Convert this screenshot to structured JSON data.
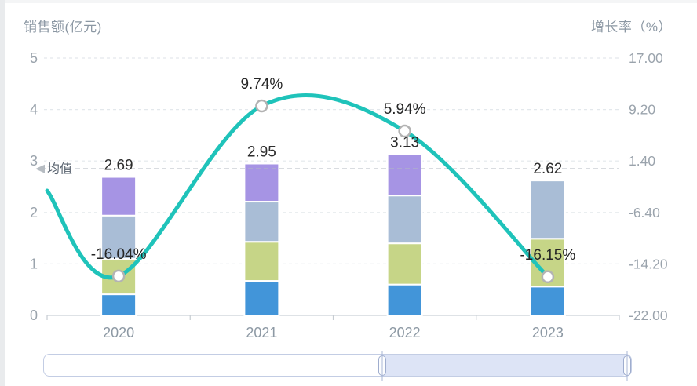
{
  "chart_data": {
    "type": "bar+line",
    "title": "",
    "categories": [
      "2020",
      "2021",
      "2022",
      "2023"
    ],
    "left_axis": {
      "name": "销售额(亿元)",
      "min": 0,
      "max": 5,
      "tick_labels": [
        "5",
        "4",
        "3",
        "2",
        "1",
        "0"
      ],
      "tick_values": [
        5,
        4,
        3,
        2,
        1,
        0
      ]
    },
    "right_axis": {
      "name": "增长率（%）",
      "min": -22,
      "max": 17,
      "tick_labels": [
        "17.00",
        "9.20",
        "1.40",
        "-6.40",
        "-14.20",
        "-22.00"
      ],
      "tick_values": [
        17,
        9.2,
        1.4,
        -6.4,
        -14.2,
        -22
      ]
    },
    "grid": "dashed horizontal gridlines",
    "legend_position": "none",
    "bar_series": [
      {
        "name": "stack-segment-blue",
        "color": "#4295d9",
        "values": [
          0.41,
          0.67,
          0.6,
          0.56
        ]
      },
      {
        "name": "stack-segment-green",
        "color": "#c6d587",
        "values": [
          0.69,
          0.76,
          0.8,
          0.93
        ]
      },
      {
        "name": "stack-segment-slate",
        "color": "#a9bdd6",
        "values": [
          0.84,
          0.78,
          0.93,
          1.13
        ]
      },
      {
        "name": "stack-segment-purple",
        "color": "#a694e4",
        "values": [
          0.75,
          0.74,
          0.8,
          0.0
        ]
      }
    ],
    "bar_totals": {
      "labels": [
        "2.69",
        "2.95",
        "3.13",
        "2.62"
      ],
      "values": [
        2.69,
        2.95,
        3.13,
        2.62
      ]
    },
    "line_series": {
      "name": "增长率",
      "color": "#1fc3ba",
      "values": [
        -16.04,
        9.74,
        5.94,
        -16.15
      ],
      "labels": [
        "-16.04%",
        "9.74%",
        "5.94%",
        "-16.15%"
      ],
      "lead_in_value": -3.1
    },
    "mean_line": {
      "label": "均值",
      "value": 2.8475
    }
  },
  "slider": {
    "window_start_pct": 57.6,
    "window_end_pct": 99.3
  }
}
